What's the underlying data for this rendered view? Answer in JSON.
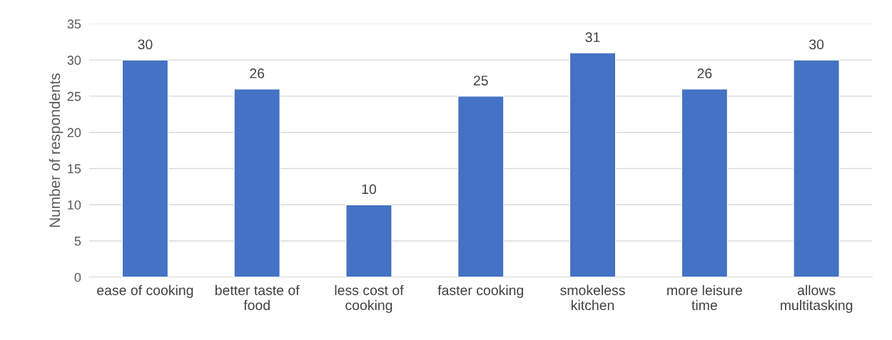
{
  "chart_data": {
    "type": "bar",
    "ylabel": "Number of respondents",
    "categories": [
      "ease of cooking",
      "better taste of\nfood",
      "less cost of\ncooking",
      "faster cooking",
      "smokeless\nkitchen",
      "more leisure\ntime",
      "allows\nmultitasking"
    ],
    "values": [
      30,
      26,
      10,
      25,
      31,
      26,
      30
    ],
    "color": "#4472c4",
    "ylim": [
      0,
      35
    ],
    "yticks": [
      0,
      5,
      10,
      15,
      20,
      25,
      30,
      35
    ],
    "grid": "y",
    "data_labels": true
  }
}
